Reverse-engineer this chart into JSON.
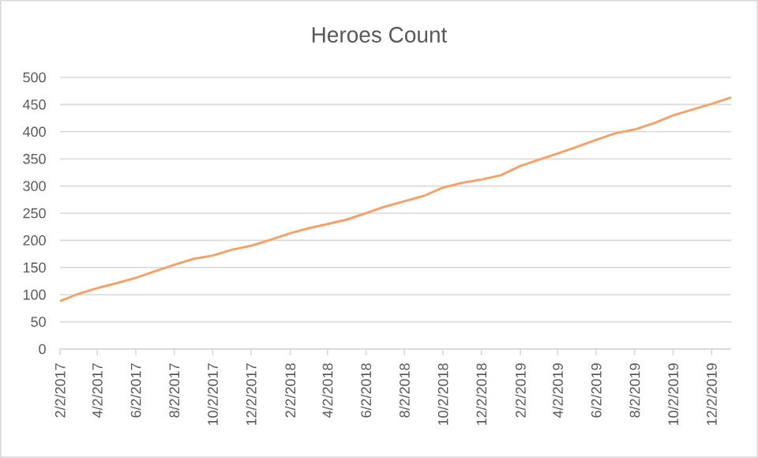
{
  "chart_data": {
    "type": "line",
    "title": "Heroes Count",
    "x": [
      "2017-02-02",
      "2017-03-02",
      "2017-04-02",
      "2017-05-02",
      "2017-06-02",
      "2017-07-02",
      "2017-08-02",
      "2017-09-02",
      "2017-10-02",
      "2017-11-02",
      "2017-12-02",
      "2018-01-02",
      "2018-02-02",
      "2018-03-02",
      "2018-04-02",
      "2018-05-02",
      "2018-06-02",
      "2018-07-02",
      "2018-08-02",
      "2018-09-02",
      "2018-10-02",
      "2018-11-02",
      "2018-12-02",
      "2019-01-02",
      "2019-02-02",
      "2019-03-02",
      "2019-04-02",
      "2019-05-02",
      "2019-06-02",
      "2019-07-02",
      "2019-08-02",
      "2019-09-02",
      "2019-10-02",
      "2019-11-02",
      "2019-12-02",
      "2020-01-02"
    ],
    "series": [
      {
        "color": "#f5a26a",
        "values": [
          88,
          101,
          112,
          121,
          131,
          143,
          155,
          166,
          172,
          183,
          190,
          201,
          213,
          222,
          230,
          238,
          250,
          262,
          272,
          282,
          297,
          306,
          312,
          320,
          337,
          348,
          360,
          372,
          385,
          397,
          404,
          416,
          430,
          441,
          451,
          463
        ]
      }
    ],
    "xlim": [
      "2017-02-02",
      "2020-01-02"
    ],
    "xticks": [
      {
        "value": "2017-02-02",
        "label": "2/2/2017"
      },
      {
        "value": "2017-04-02",
        "label": "4/2/2017"
      },
      {
        "value": "2017-06-02",
        "label": "6/2/2017"
      },
      {
        "value": "2017-08-02",
        "label": "8/2/2017"
      },
      {
        "value": "2017-10-02",
        "label": "10/2/2017"
      },
      {
        "value": "2017-12-02",
        "label": "12/2/2017"
      },
      {
        "value": "2018-02-02",
        "label": "2/2/2018"
      },
      {
        "value": "2018-04-02",
        "label": "4/2/2018"
      },
      {
        "value": "2018-06-02",
        "label": "6/2/2018"
      },
      {
        "value": "2018-08-02",
        "label": "8/2/2018"
      },
      {
        "value": "2018-10-02",
        "label": "10/2/2018"
      },
      {
        "value": "2018-12-02",
        "label": "12/2/2018"
      },
      {
        "value": "2019-02-02",
        "label": "2/2/2019"
      },
      {
        "value": "2019-04-02",
        "label": "4/2/2019"
      },
      {
        "value": "2019-06-02",
        "label": "6/2/2019"
      },
      {
        "value": "2019-08-02",
        "label": "8/2/2019"
      },
      {
        "value": "2019-10-02",
        "label": "10/2/2019"
      },
      {
        "value": "2019-12-02",
        "label": "12/2/2019"
      }
    ],
    "ylim": [
      0,
      500
    ],
    "yticks": [
      0,
      50,
      100,
      150,
      200,
      250,
      300,
      350,
      400,
      450,
      500
    ],
    "grid": "y",
    "marker": "none",
    "line_style": "solid"
  }
}
